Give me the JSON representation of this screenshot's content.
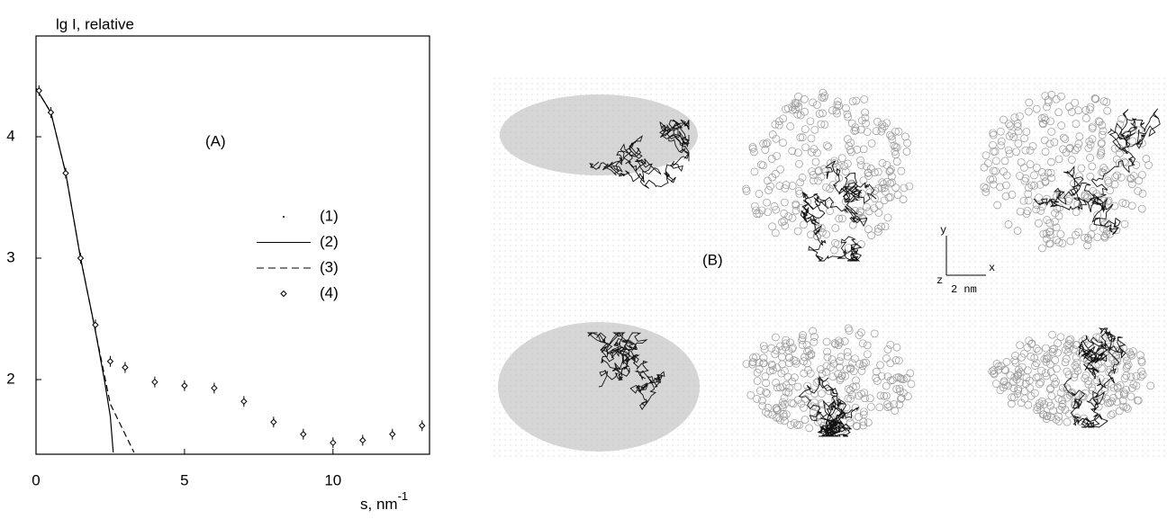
{
  "chart_data": {
    "type": "line",
    "y_label": "lg I, relative",
    "x_label": "s, nm",
    "x_label_sup": "-1",
    "annotation": "(A)",
    "xlim": [
      0,
      13.25
    ],
    "ylim": [
      1.385,
      4.83
    ],
    "xticks": [
      0,
      5,
      10
    ],
    "yticks": [
      2,
      3,
      4
    ],
    "series": [
      {
        "name": "(1)",
        "style": "points",
        "color": "#000000",
        "x": [
          0.1,
          0.5,
          1,
          1.5,
          2,
          2.5,
          3,
          4,
          5,
          6,
          7,
          8,
          9,
          10,
          11,
          12,
          13
        ],
        "values": [
          4.38,
          4.2,
          3.7,
          3.0,
          2.45,
          2.15,
          2.1,
          1.98,
          1.95,
          1.93,
          1.82,
          1.65,
          1.55,
          1.48,
          1.5,
          1.55,
          1.62
        ]
      },
      {
        "name": "(2)",
        "style": "line",
        "color": "#000000",
        "x": [
          0,
          0.5,
          1,
          1.5,
          2,
          2.3,
          2.5,
          2.6
        ],
        "values": [
          4.4,
          4.2,
          3.7,
          3.0,
          2.4,
          2.0,
          1.7,
          1.4
        ]
      },
      {
        "name": "(3)",
        "style": "dashed",
        "color": "#000000",
        "x": [
          0,
          0.5,
          1,
          1.5,
          2,
          2.5,
          3,
          3.3
        ],
        "values": [
          4.4,
          4.2,
          3.7,
          3.0,
          2.4,
          1.8,
          1.55,
          1.4
        ]
      },
      {
        "name": "(4)",
        "style": "diamonds",
        "color": "#000000",
        "x": [
          0.1,
          0.5,
          1,
          1.5,
          2,
          2.5,
          3,
          4,
          5,
          6,
          7,
          8,
          9,
          10,
          11,
          12,
          13
        ],
        "values": [
          4.38,
          4.2,
          3.7,
          3.0,
          2.45,
          2.15,
          2.1,
          1.98,
          1.95,
          1.93,
          1.82,
          1.65,
          1.55,
          1.48,
          1.5,
          1.55,
          1.62
        ]
      }
    ]
  },
  "panel_b": {
    "label": "(B)",
    "axis_y": "y",
    "axis_x": "x",
    "axis_z": "z",
    "scale": "2 nm"
  }
}
